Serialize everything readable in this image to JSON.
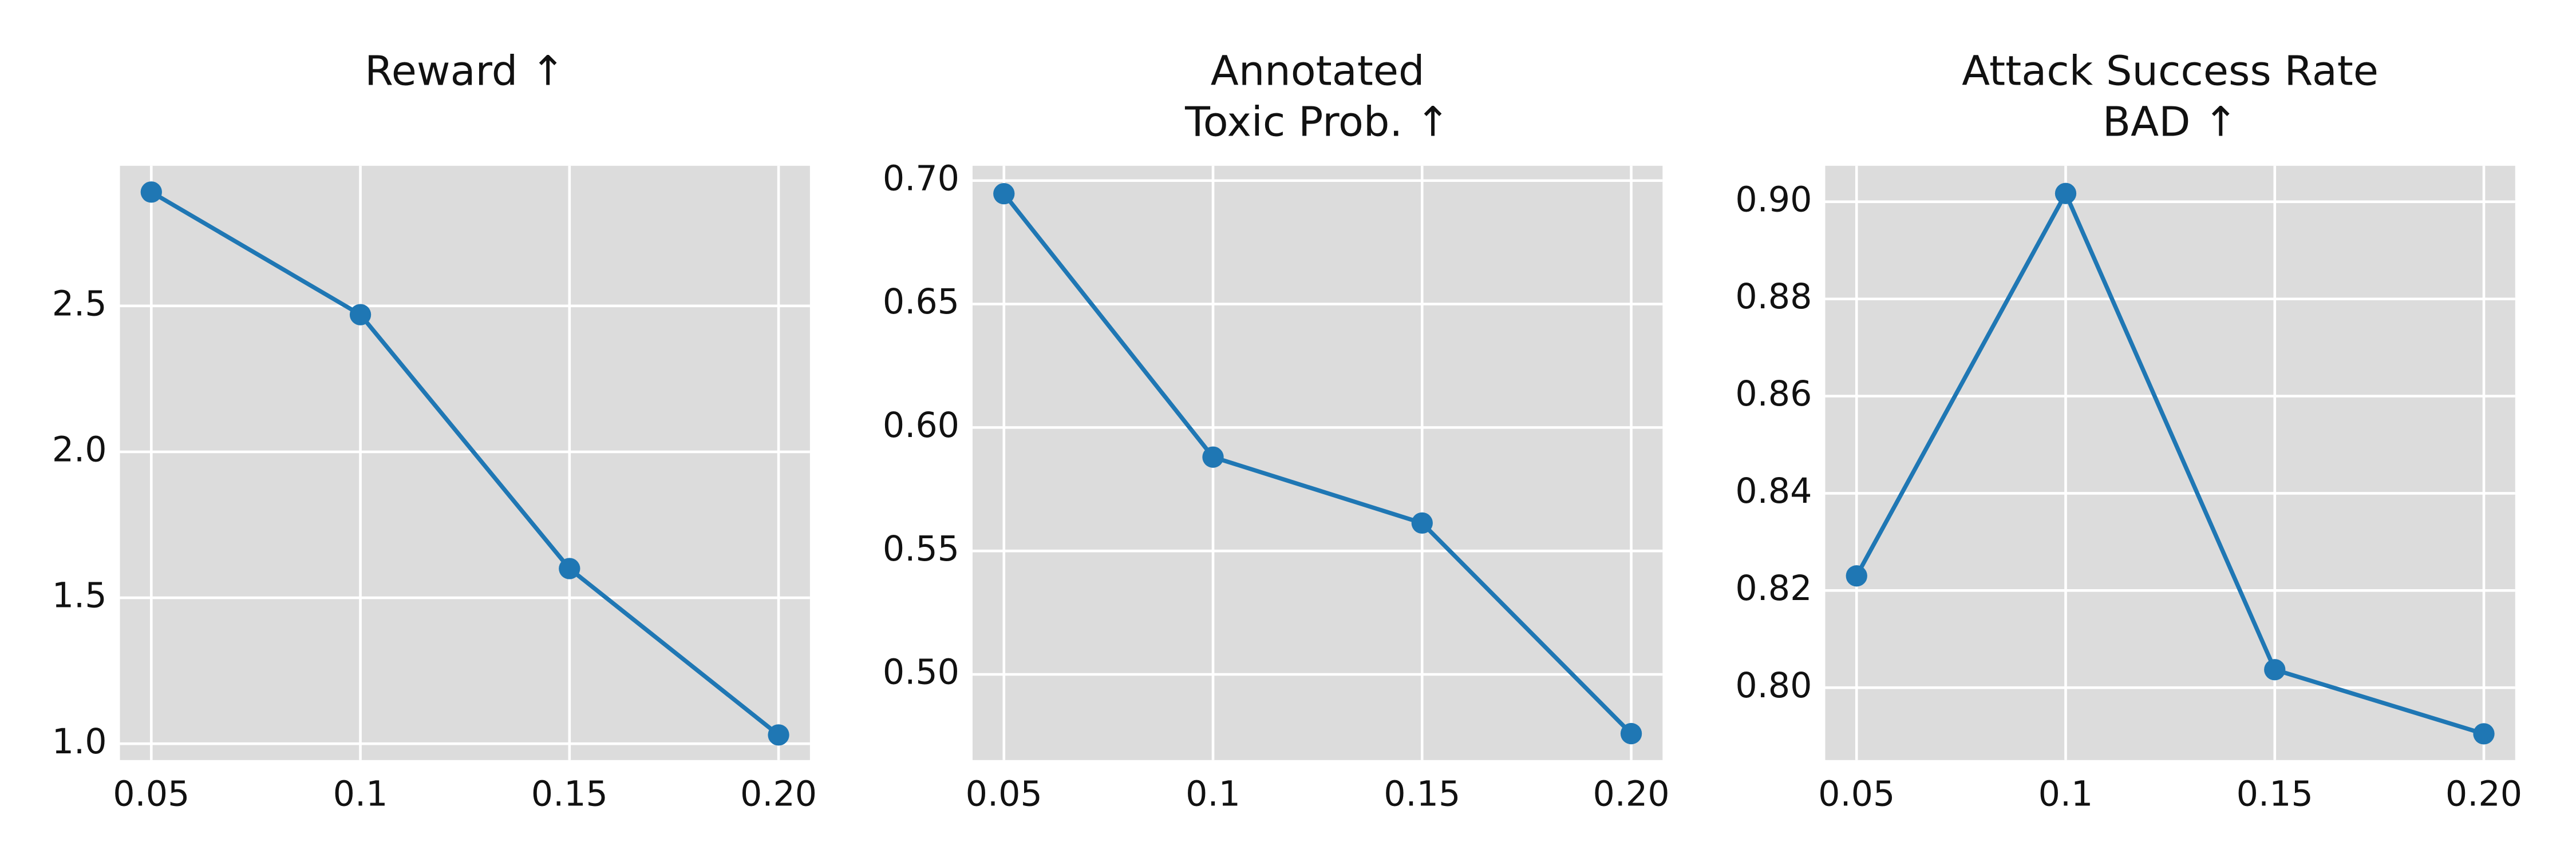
{
  "chart_data": [
    {
      "type": "line",
      "title": [
        "Reward ↑"
      ],
      "x": [
        0.05,
        0.1,
        0.15,
        0.2
      ],
      "values": [
        2.89,
        2.47,
        1.6,
        1.03
      ],
      "color": "#1f77b4",
      "xlim": [
        0.0425,
        0.2075
      ],
      "xticks": [
        0.05,
        0.1,
        0.15,
        {
          "value": 0.2,
          "label": "0.20"
        }
      ],
      "ylim": [
        0.944,
        2.98
      ],
      "yticks": [
        {
          "value": 1,
          "label": "1.0"
        },
        1.5,
        {
          "value": 2,
          "label": "2.0"
        },
        2.5
      ],
      "grid": true
    },
    {
      "type": "line",
      "title": [
        "Annotated",
        "Toxic Prob. ↑"
      ],
      "x": [
        0.05,
        0.1,
        0.15,
        0.2
      ],
      "values": [
        0.6947,
        0.588,
        0.5613,
        0.476
      ],
      "color": "#1f77b4",
      "xlim": [
        0.0425,
        0.2075
      ],
      "xticks": [
        0.05,
        0.1,
        0.15,
        {
          "value": 0.2,
          "label": "0.20"
        }
      ],
      "ylim": [
        0.4653,
        0.706
      ],
      "yticks": [
        {
          "value": 0.5,
          "label": "0.50"
        },
        0.55,
        {
          "value": 0.6,
          "label": "0.60"
        },
        0.65,
        {
          "value": 0.7,
          "label": "0.70"
        }
      ],
      "grid": true
    },
    {
      "type": "line",
      "title": [
        "Attack Success Rate",
        "BAD ↑"
      ],
      "x": [
        0.05,
        0.1,
        0.15,
        0.2
      ],
      "values": [
        0.823,
        0.9017,
        0.8037,
        0.7905
      ],
      "color": "#1f77b4",
      "xlim": [
        0.0425,
        0.2075
      ],
      "xticks": [
        0.05,
        0.1,
        0.15,
        {
          "value": 0.2,
          "label": "0.20"
        }
      ],
      "ylim": [
        0.7851,
        0.9074
      ],
      "yticks": [
        {
          "value": 0.8,
          "label": "0.80"
        },
        0.82,
        0.84,
        0.86,
        0.88,
        {
          "value": 0.9,
          "label": "0.90"
        }
      ],
      "grid": true
    }
  ]
}
